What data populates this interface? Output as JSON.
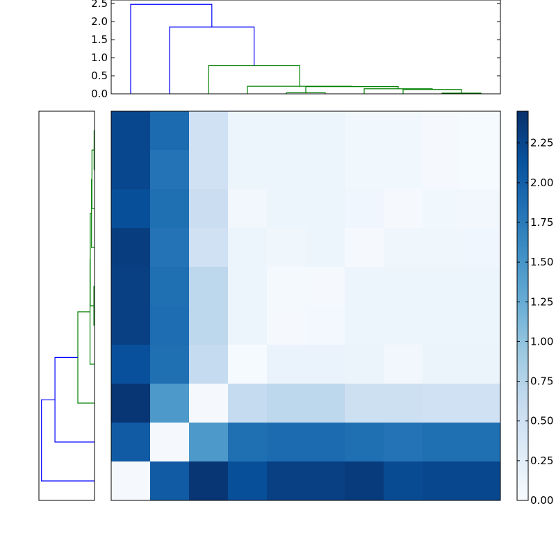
{
  "chart_data": [
    {
      "type": "dendrogram",
      "orientation": "top",
      "ylim": [
        0,
        2.6
      ],
      "yticks": [
        "0.0",
        "0.5",
        "1.0",
        "1.5",
        "2.0",
        "2.5"
      ],
      "leaf_count": 10,
      "links": [
        {
          "icoord": [
            85,
            85,
            95,
            95
          ],
          "dcoord": [
            0,
            0.02,
            0.02,
            0
          ],
          "color": "#008000"
        },
        {
          "icoord": [
            75,
            75,
            90,
            90
          ],
          "dcoord": [
            0,
            0.12,
            0.12,
            0.02
          ],
          "color": "#008000"
        },
        {
          "icoord": [
            65,
            65,
            82.5,
            82.5
          ],
          "dcoord": [
            0,
            0.14,
            0.14,
            0.12
          ],
          "color": "#008000"
        },
        {
          "icoord": [
            45,
            45,
            55,
            55
          ],
          "dcoord": [
            0,
            0.03,
            0.03,
            0
          ],
          "color": "#008000"
        },
        {
          "icoord": [
            50,
            50,
            73.75,
            73.75
          ],
          "dcoord": [
            0.03,
            0.2,
            0.2,
            0.14
          ],
          "color": "#008000"
        },
        {
          "icoord": [
            35,
            35,
            61.875,
            61.875
          ],
          "dcoord": [
            0,
            0.21,
            0.21,
            0.2
          ],
          "color": "#008000"
        },
        {
          "icoord": [
            25,
            25,
            48.4375,
            48.4375
          ],
          "dcoord": [
            0,
            0.78,
            0.78,
            0.21
          ],
          "color": "#008000"
        },
        {
          "icoord": [
            15,
            15,
            36.71875,
            36.71875
          ],
          "dcoord": [
            0,
            1.85,
            1.85,
            0.78
          ],
          "color": "#0000ff"
        },
        {
          "icoord": [
            5,
            5,
            25.859375,
            25.859375
          ],
          "dcoord": [
            0,
            2.48,
            2.48,
            1.85
          ],
          "color": "#0000ff"
        }
      ]
    },
    {
      "type": "dendrogram",
      "orientation": "left",
      "xlim": [
        0,
        2.6
      ],
      "leaf_count": 10,
      "links": [
        {
          "icoord": [
            85,
            85,
            95,
            95
          ],
          "dcoord": [
            0,
            0.02,
            0.02,
            0
          ],
          "color": "#008000"
        },
        {
          "icoord": [
            75,
            75,
            90,
            90
          ],
          "dcoord": [
            0,
            0.12,
            0.12,
            0.02
          ],
          "color": "#008000"
        },
        {
          "icoord": [
            65,
            65,
            82.5,
            82.5
          ],
          "dcoord": [
            0,
            0.14,
            0.14,
            0.12
          ],
          "color": "#008000"
        },
        {
          "icoord": [
            45,
            45,
            55,
            55
          ],
          "dcoord": [
            0,
            0.03,
            0.03,
            0
          ],
          "color": "#008000"
        },
        {
          "icoord": [
            50,
            50,
            73.75,
            73.75
          ],
          "dcoord": [
            0.03,
            0.2,
            0.2,
            0.14
          ],
          "color": "#008000"
        },
        {
          "icoord": [
            35,
            35,
            61.875,
            61.875
          ],
          "dcoord": [
            0,
            0.21,
            0.21,
            0.2
          ],
          "color": "#008000"
        },
        {
          "icoord": [
            25,
            25,
            48.4375,
            48.4375
          ],
          "dcoord": [
            0,
            0.78,
            0.78,
            0.21
          ],
          "color": "#008000"
        },
        {
          "icoord": [
            15,
            15,
            36.71875,
            36.71875
          ],
          "dcoord": [
            0,
            1.85,
            1.85,
            0.78
          ],
          "color": "#0000ff"
        },
        {
          "icoord": [
            5,
            5,
            25.859375,
            25.859375
          ],
          "dcoord": [
            0,
            2.48,
            2.48,
            1.85
          ],
          "color": "#0000ff"
        }
      ]
    },
    {
      "type": "heatmap",
      "colormap": "Blues",
      "vmin": 0,
      "vmax": 2.45,
      "values": [
        [
          2.24,
          1.9,
          0.5,
          0.12,
          0.12,
          0.12,
          0.08,
          0.08,
          0.03,
          0.02
        ],
        [
          2.24,
          1.82,
          0.5,
          0.12,
          0.12,
          0.12,
          0.08,
          0.08,
          0.03,
          0.02
        ],
        [
          2.16,
          1.86,
          0.55,
          0.07,
          0.12,
          0.12,
          0.09,
          0.03,
          0.08,
          0.07
        ],
        [
          2.32,
          1.82,
          0.5,
          0.12,
          0.1,
          0.12,
          0.03,
          0.1,
          0.1,
          0.09
        ],
        [
          2.3,
          1.86,
          0.68,
          0.12,
          0.04,
          0.03,
          0.12,
          0.12,
          0.12,
          0.12
        ],
        [
          2.3,
          1.88,
          0.68,
          0.12,
          0.03,
          0.06,
          0.12,
          0.12,
          0.12,
          0.12
        ],
        [
          2.15,
          1.86,
          0.62,
          0.02,
          0.16,
          0.16,
          0.14,
          0.07,
          0.14,
          0.14
        ],
        [
          2.4,
          1.45,
          0.03,
          0.62,
          0.68,
          0.68,
          0.52,
          0.52,
          0.5,
          0.5
        ],
        [
          2.05,
          0.03,
          1.45,
          1.86,
          1.9,
          1.9,
          1.86,
          1.82,
          1.86,
          1.86
        ],
        [
          0.03,
          2.05,
          2.4,
          2.16,
          2.3,
          2.3,
          2.35,
          2.2,
          2.24,
          2.24
        ]
      ],
      "colorbar": {
        "ticks": [
          0.0,
          0.25,
          0.5,
          0.75,
          1.0,
          1.25,
          1.5,
          1.75,
          2.0,
          2.25
        ],
        "tick_labels": [
          "0.00",
          "0.25",
          "0.50",
          "0.75",
          "1.00",
          "1.25",
          "1.50",
          "1.75",
          "2.00",
          "2.25"
        ]
      }
    }
  ]
}
